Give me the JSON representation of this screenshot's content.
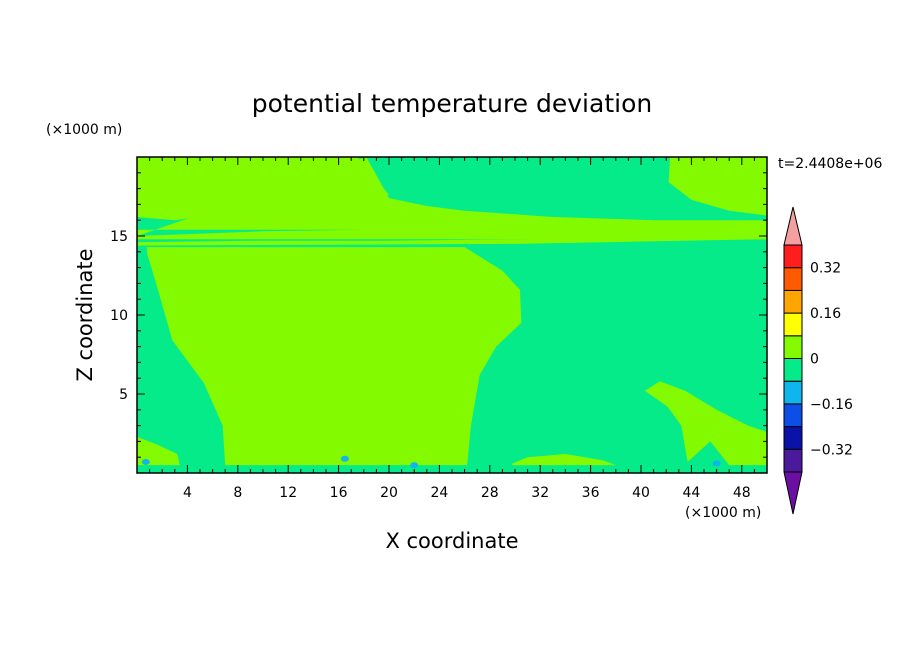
{
  "chart_data": {
    "type": "heatmap",
    "title": "potential temperature deviation",
    "xlabel": "X coordinate",
    "ylabel": "Z coordinate",
    "x_unit": "(×1000 m)",
    "y_unit": "(×1000 m)",
    "time_label": "t=2.4408e+06",
    "xlim": [
      0,
      50
    ],
    "ylim": [
      0,
      20
    ],
    "x_ticks": [
      4,
      8,
      12,
      16,
      20,
      24,
      28,
      32,
      36,
      40,
      44,
      48
    ],
    "y_ticks": [
      5,
      10,
      15
    ],
    "colorbar": {
      "levels": [
        -0.4,
        -0.32,
        -0.24,
        -0.16,
        -0.08,
        0,
        0.08,
        0.16,
        0.24,
        0.32,
        0.4
      ],
      "colors": [
        "#4b1a9a",
        "#0a12a8",
        "#0d4ee6",
        "#0fb6ee",
        "#05eb8a",
        "#84fa00",
        "#ffff00",
        "#ffa500",
        "#ff5a00",
        "#ff1e1e"
      ],
      "under_color": "#6a0fa2",
      "over_color": "#f5a0a0",
      "label_values": [
        0.32,
        0.16,
        0,
        -0.16,
        -0.32
      ],
      "labels": [
        "0.32",
        "0.16",
        "0",
        "−0.16",
        "−0.32"
      ]
    },
    "field_colors": {
      "background": "#05eb8a",
      "positive": "#84fa00",
      "negative_spots": "#0fb6ee"
    },
    "regions": [
      {
        "name": "center-positive-region",
        "level": "positive",
        "points": [
          [
            0.8,
            13.9
          ],
          [
            1.7,
            11.5
          ],
          [
            2.8,
            8.4
          ],
          [
            5.3,
            5.7
          ],
          [
            6.8,
            3.0
          ],
          [
            7.0,
            0.5
          ],
          [
            14,
            0.5
          ],
          [
            20,
            0.5
          ],
          [
            25,
            0.5
          ],
          [
            26.2,
            0.5
          ],
          [
            26.5,
            3.0
          ],
          [
            27.2,
            6.2
          ],
          [
            28.5,
            8.0
          ],
          [
            30.5,
            9.5
          ],
          [
            30.4,
            11.6
          ],
          [
            29,
            12.8
          ],
          [
            26,
            14.3
          ],
          [
            0.8,
            14.3
          ]
        ]
      },
      {
        "name": "upper-left-positive-region",
        "level": "positive",
        "points": [
          [
            0,
            15.0
          ],
          [
            0,
            16.2
          ],
          [
            3,
            16.0
          ],
          [
            10,
            16.8
          ],
          [
            17,
            17.2
          ],
          [
            20,
            17.6
          ],
          [
            17.5,
            20
          ],
          [
            0,
            20
          ]
        ]
      },
      {
        "name": "upper-middle-positive-region",
        "level": "positive",
        "points": [
          [
            18.2,
            20
          ],
          [
            20,
            17.4
          ],
          [
            23,
            16.9
          ],
          [
            26,
            16.6
          ],
          [
            33,
            16.2
          ],
          [
            41,
            16.0
          ],
          [
            50,
            16.0
          ],
          [
            50,
            14.8
          ],
          [
            0,
            14.8
          ],
          [
            0,
            15.0
          ],
          [
            10,
            15.3
          ],
          [
            18,
            15.4
          ],
          [
            0,
            15.4
          ],
          [
            0,
            15.0
          ]
        ]
      },
      {
        "name": "upper-right-positive-region",
        "level": "positive",
        "points": [
          [
            42.3,
            20
          ],
          [
            42.2,
            18.4
          ],
          [
            44,
            17.3
          ],
          [
            47,
            16.6
          ],
          [
            50,
            16.3
          ],
          [
            50,
            20
          ]
        ]
      },
      {
        "name": "right-positive-region",
        "level": "positive",
        "points": [
          [
            40.3,
            5.2
          ],
          [
            41.5,
            5.8
          ],
          [
            43.5,
            5.2
          ],
          [
            46,
            4.0
          ],
          [
            48.5,
            3.0
          ],
          [
            50,
            2.6
          ],
          [
            50,
            0.5
          ],
          [
            47,
            0.5
          ],
          [
            45.5,
            2.0
          ],
          [
            43.7,
            0.7
          ],
          [
            43.2,
            3.0
          ],
          [
            42.1,
            4.2
          ]
        ]
      },
      {
        "name": "bottom-left-positive-region",
        "level": "positive",
        "points": [
          [
            0,
            2.3
          ],
          [
            1.6,
            1.8
          ],
          [
            3.2,
            1.2
          ],
          [
            3.4,
            0.5
          ],
          [
            0,
            0.5
          ]
        ]
      },
      {
        "name": "bottom-mid-positive-region",
        "level": "positive",
        "points": [
          [
            29.8,
            0.6
          ],
          [
            31,
            1.0
          ],
          [
            34,
            1.2
          ],
          [
            37,
            0.8
          ],
          [
            38,
            0.5
          ],
          [
            29.8,
            0.5
          ]
        ]
      },
      {
        "name": "thin-positive-band",
        "level": "positive",
        "points": [
          [
            0,
            14.6
          ],
          [
            10,
            14.7
          ],
          [
            20,
            14.7
          ],
          [
            30,
            14.8
          ],
          [
            40,
            14.9
          ],
          [
            50,
            15.0
          ],
          [
            50,
            14.8
          ],
          [
            30,
            14.5
          ],
          [
            0,
            14.4
          ]
        ]
      }
    ]
  }
}
